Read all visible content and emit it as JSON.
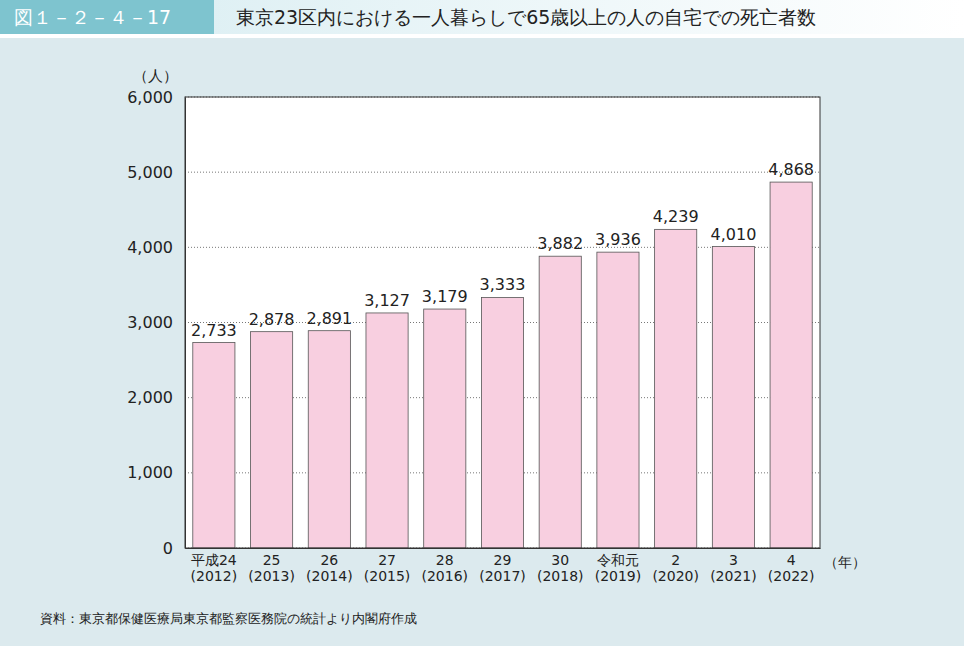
{
  "chart_data": {
    "type": "bar",
    "figure_number": "図１－２－４－17",
    "title": "東京23区内における一人暮らしで65歳以上の人の自宅での死亡者数",
    "y_label": "（人）",
    "x_label": "（年）",
    "source": "資料：東京都保健医療局東京都監察医務院の統計より内閣府作成",
    "categories": [
      "平成24\n(2012)",
      "25\n(2013)",
      "26\n(2014)",
      "27\n(2015)",
      "28\n(2016)",
      "29\n(2017)",
      "30\n(2018)",
      "令和元\n(2019)",
      "2\n(2020)",
      "3\n(2021)",
      "4\n(2022)"
    ],
    "values": [
      2733,
      2878,
      2891,
      3127,
      3179,
      3333,
      3882,
      3936,
      4239,
      4010,
      4868
    ],
    "value_labels": [
      "2,733",
      "2,878",
      "2,891",
      "3,127",
      "3,179",
      "3,333",
      "3,882",
      "3,936",
      "4,239",
      "4,010",
      "4,868"
    ],
    "color": "#f8cfe0",
    "ylim": [
      0,
      6000
    ],
    "yticks": [
      0,
      {
        "value": 1000,
        "label": "1,000"
      },
      {
        "value": 2000,
        "label": "2,000"
      },
      {
        "value": 3000,
        "label": "3,000"
      },
      {
        "value": 4000,
        "label": "4,000"
      },
      {
        "value": 5000,
        "label": "5,000"
      },
      {
        "value": 6000,
        "label": "6,000"
      }
    ],
    "grid": true,
    "data_labels": true
  }
}
